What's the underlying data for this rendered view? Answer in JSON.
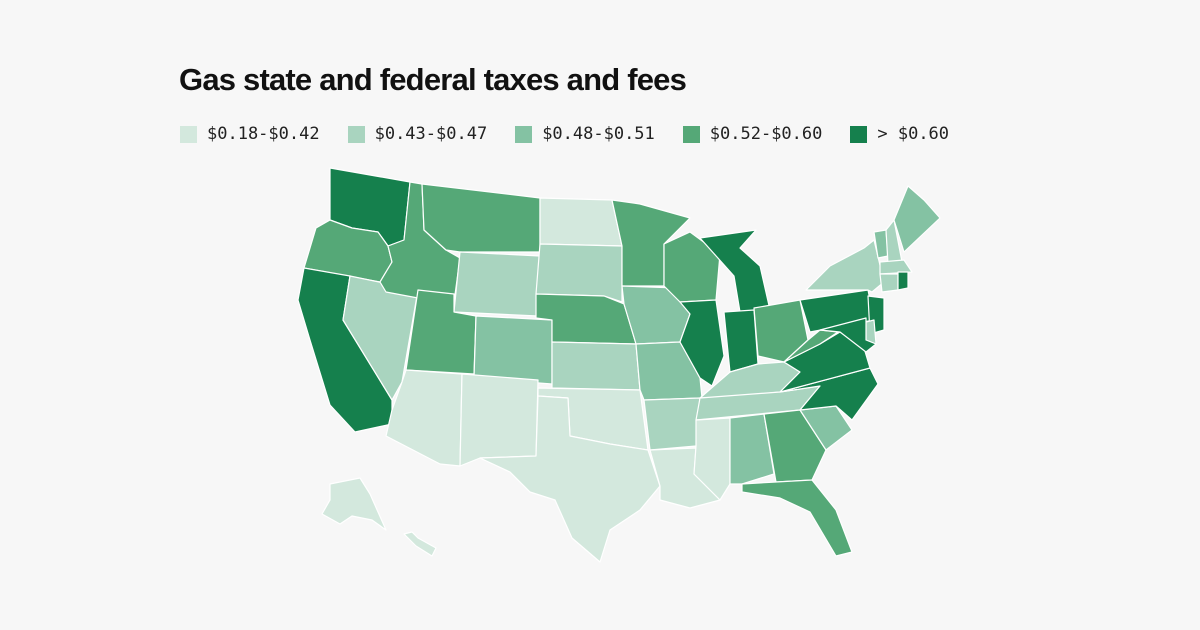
{
  "title": "Gas state and federal taxes and fees",
  "colors": [
    "#d3e8dd",
    "#a9d4bf",
    "#84c2a3",
    "#55a877",
    "#15804d"
  ],
  "legend": [
    {
      "label": "$0.18-$0.42",
      "color": "#d3e8dd"
    },
    {
      "label": "$0.43-$0.47",
      "color": "#a9d4bf"
    },
    {
      "label": "$0.48-$0.51",
      "color": "#84c2a3"
    },
    {
      "label": "$0.52-$0.60",
      "color": "#55a877"
    },
    {
      "label": "> $0.60",
      "color": "#15804d"
    }
  ],
  "states": {
    "WA": 4,
    "OR": 3,
    "CA": 4,
    "NV": 1,
    "ID": 3,
    "MT": 3,
    "WY": 1,
    "UT": 3,
    "AZ": 0,
    "CO": 2,
    "NM": 0,
    "ND": 0,
    "SD": 1,
    "NE": 3,
    "KS": 1,
    "OK": 0,
    "TX": 0,
    "MN": 3,
    "IA": 2,
    "MO": 2,
    "AR": 1,
    "LA": 0,
    "WI": 3,
    "IL": 4,
    "MI": 4,
    "IN": 4,
    "OH": 3,
    "KY": 1,
    "TN": 1,
    "MS": 0,
    "AL": 2,
    "GA": 3,
    "FL": 3,
    "SC": 2,
    "NC": 4,
    "VA": 4,
    "WV": 3,
    "PA": 4,
    "NY": 1,
    "VT": 2,
    "NH": 1,
    "ME": 2,
    "MA": 1,
    "CT": 1,
    "RI": 4,
    "NJ": 4,
    "DE": 1,
    "MD": 4,
    "AK": 0,
    "HI": 0
  }
}
